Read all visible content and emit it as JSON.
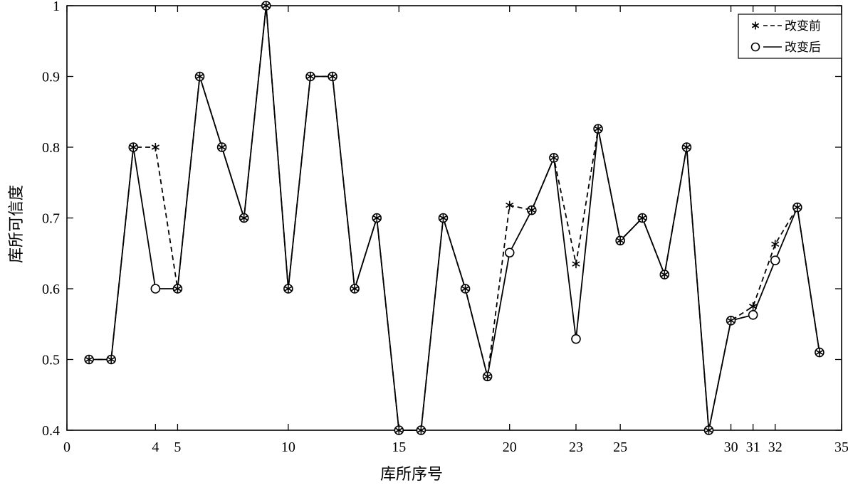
{
  "chart_data": {
    "type": "line",
    "xlabel": "库所序号",
    "ylabel": "库所可信度",
    "xlim": [
      0,
      35
    ],
    "ylim": [
      0.4,
      1.0
    ],
    "x_ticks": [
      "0",
      "4",
      "5",
      "10",
      "15",
      "20",
      "23",
      "25",
      "30",
      "31",
      "32",
      "35"
    ],
    "x_tick_values": [
      0,
      4,
      5,
      10,
      15,
      20,
      23,
      25,
      30,
      31,
      32,
      35
    ],
    "y_ticks": [
      "0.4",
      "0.5",
      "0.6",
      "0.7",
      "0.8",
      "0.9",
      "1"
    ],
    "y_tick_values": [
      0.4,
      0.5,
      0.6,
      0.7,
      0.8,
      0.9,
      1.0
    ],
    "grid": false,
    "legend_position": "top-right",
    "x": [
      1,
      2,
      3,
      4,
      5,
      6,
      7,
      8,
      9,
      10,
      11,
      12,
      13,
      14,
      15,
      16,
      17,
      18,
      19,
      20,
      21,
      22,
      23,
      24,
      25,
      26,
      27,
      28,
      29,
      30,
      31,
      32,
      33,
      34
    ],
    "series": [
      {
        "name": "改变前",
        "marker": "asterisk",
        "line": "dashed",
        "color": "#000000",
        "values": [
          0.5,
          0.5,
          0.8,
          0.8,
          0.6,
          0.9,
          0.8,
          0.7,
          1.0,
          0.6,
          0.9,
          0.9,
          0.6,
          0.7,
          0.4,
          0.4,
          0.7,
          0.6,
          0.476,
          0.718,
          0.711,
          0.785,
          0.635,
          0.826,
          0.668,
          0.7,
          0.62,
          0.8,
          0.4,
          0.555,
          0.575,
          0.663,
          0.715,
          0.51
        ]
      },
      {
        "name": "改变后",
        "marker": "circle",
        "line": "solid",
        "color": "#000000",
        "values": [
          0.5,
          0.5,
          0.8,
          0.6,
          0.6,
          0.9,
          0.8,
          0.7,
          1.0,
          0.6,
          0.9,
          0.9,
          0.6,
          0.7,
          0.4,
          0.4,
          0.7,
          0.6,
          0.476,
          0.651,
          0.711,
          0.785,
          0.529,
          0.826,
          0.668,
          0.7,
          0.62,
          0.8,
          0.4,
          0.555,
          0.563,
          0.64,
          0.715,
          0.51
        ]
      }
    ]
  }
}
